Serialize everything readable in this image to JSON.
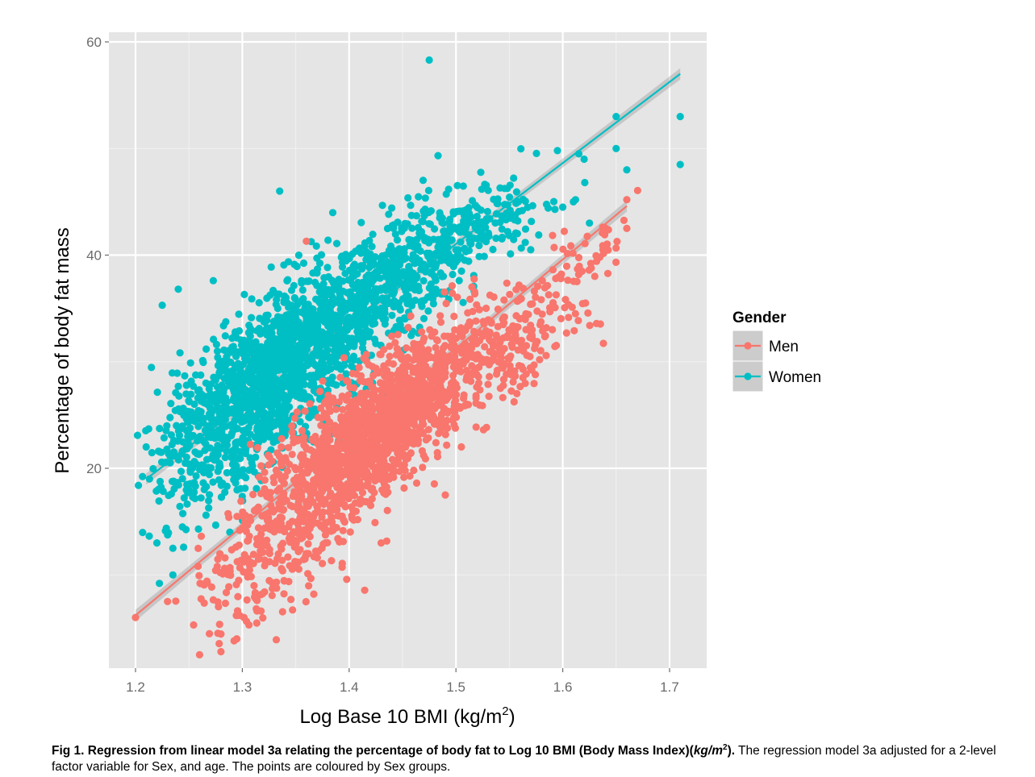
{
  "chart_data": {
    "type": "scatter",
    "xlabel": "Log Base 10 BMI (kg/m²)",
    "ylabel": "Percentage of body fat mass",
    "xlim": [
      1.2,
      1.7
    ],
    "ylim": [
      0,
      60
    ],
    "x_ticks": [
      "1.2",
      "1.3",
      "1.4",
      "1.5",
      "1.6",
      "1.7"
    ],
    "y_ticks": [
      "20",
      "40",
      "60"
    ],
    "grid": true,
    "legend": {
      "title": "Gender",
      "placement": "right",
      "entries": [
        "Men",
        "Women"
      ]
    },
    "series": [
      {
        "name": "Men",
        "color": "#f8766d",
        "regression": {
          "x": [
            1.2,
            1.66
          ],
          "y": [
            6.2,
            44.6
          ]
        },
        "cloud": [
          {
            "cx": 1.43,
            "cy": 24,
            "sx": 0.045,
            "sy": 4.5,
            "rho": 0.75,
            "n": 1500
          },
          {
            "cx": 1.34,
            "cy": 14,
            "sx": 0.04,
            "sy": 4.5,
            "rho": 0.6,
            "n": 350
          },
          {
            "cx": 1.55,
            "cy": 32,
            "sx": 0.04,
            "sy": 3.0,
            "rho": 0.6,
            "n": 220
          },
          {
            "cx": 1.62,
            "cy": 40,
            "sx": 0.02,
            "sy": 2.0,
            "rho": 0.5,
            "n": 40
          }
        ],
        "points": [
          [
            1.2,
            6
          ],
          [
            1.26,
            2.5
          ],
          [
            1.28,
            2.8
          ],
          [
            1.23,
            7.5
          ],
          [
            1.66,
            45.2
          ],
          [
            1.36,
            41.3
          ],
          [
            1.49,
            17.5
          ],
          [
            1.43,
            13
          ],
          [
            1.63,
            38
          ],
          [
            1.66,
            42.5
          ]
        ]
      },
      {
        "name": "Women",
        "color": "#00bfc4",
        "regression": {
          "x": [
            1.21,
            1.71
          ],
          "y": [
            19,
            57
          ]
        },
        "cloud": [
          {
            "cx": 1.33,
            "cy": 29,
            "sx": 0.045,
            "sy": 4.5,
            "rho": 0.6,
            "n": 1300
          },
          {
            "cx": 1.43,
            "cy": 37,
            "sx": 0.04,
            "sy": 3.5,
            "rho": 0.6,
            "n": 500
          },
          {
            "cx": 1.52,
            "cy": 42.5,
            "sx": 0.04,
            "sy": 2.5,
            "rho": 0.6,
            "n": 180
          },
          {
            "cx": 1.27,
            "cy": 20,
            "sx": 0.03,
            "sy": 3.5,
            "rho": 0.4,
            "n": 150
          }
        ],
        "points": [
          [
            1.475,
            58.3
          ],
          [
            1.71,
            53
          ],
          [
            1.65,
            53
          ],
          [
            1.71,
            48.5
          ],
          [
            1.65,
            50
          ],
          [
            1.66,
            48
          ],
          [
            1.62,
            49
          ],
          [
            1.615,
            49.5
          ],
          [
            1.595,
            49.8
          ],
          [
            1.335,
            46
          ],
          [
            1.61,
            45
          ],
          [
            1.6,
            44.5
          ],
          [
            1.625,
            43
          ],
          [
            1.57,
            40.5
          ],
          [
            1.225,
            35.3
          ],
          [
            1.24,
            36.8
          ],
          [
            1.21,
            22
          ],
          [
            1.22,
            13
          ],
          [
            1.235,
            10
          ],
          [
            1.235,
            12.5
          ],
          [
            1.245,
            12.6
          ]
        ]
      }
    ]
  },
  "caption": {
    "bold": "Fig 1. Regression from linear model 3a relating the percentage of body fat to Log 10 BMI (Body Mass Index)(kg/m²).",
    "rest": " The regression model 3a adjusted for a 2-level factor variable for Sex, and age. The points are coloured by Sex groups."
  }
}
